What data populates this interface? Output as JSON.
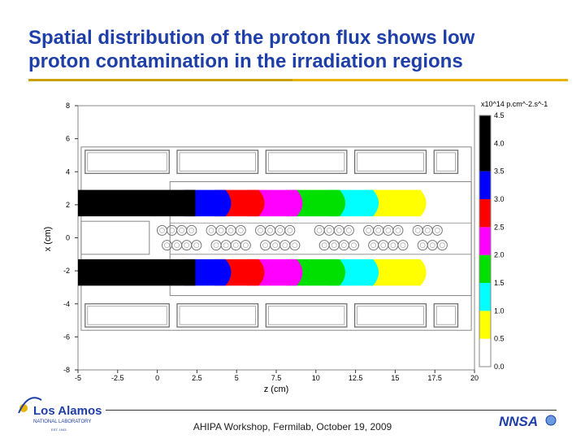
{
  "title": {
    "line1": "Spatial distribution of the proton flux shows low",
    "line2": "proton contamination in the irradiation regions"
  },
  "footer": {
    "text": "AHIPA Workshop, Fermilab, October 19, 2009",
    "logo_left_line1": "Los Alamos",
    "logo_left_line2": "NATIONAL LABORATORY",
    "logo_left_line3": "EST. 1943",
    "logo_right": "NNSA"
  },
  "colors": {
    "title": "#1f3fa8",
    "accent_rule": "#e8b400",
    "bin_0_0.5": "#ffffff",
    "bin_0.5_1.0": "#ffff00",
    "bin_1.0_1.5": "#00ffff",
    "bin_1.5_2.0": "#00e000",
    "bin_2.0_2.5": "#ff00ff",
    "bin_2.5_3.0": "#ff0000",
    "bin_3.0_3.5": "#0000ff",
    "bin_3.5_4.0": "#000000"
  },
  "chart_data": {
    "type": "heatmap",
    "xlabel": "z (cm)",
    "ylabel": "x (cm)",
    "xlim": [
      -5,
      20
    ],
    "ylim": [
      -8,
      8
    ],
    "xticks": [
      "-5",
      "-2.5",
      "0",
      "2.5",
      "5",
      "7.5",
      "10",
      "12.5",
      "15",
      "17.5",
      "20"
    ],
    "yticks": [
      "8",
      "6",
      "4",
      "2",
      "0",
      "-2",
      "-4",
      "-6",
      "-8"
    ],
    "colorbar": {
      "unit": "x10^14 p.cm^-2.s^-1",
      "ticks": [
        "4.5",
        "4.0",
        "3.5",
        "3.0",
        "2.5",
        "2.0",
        "1.5",
        "1.0",
        "0.5",
        "0.0"
      ],
      "range": [
        0,
        4.5
      ]
    },
    "beams": [
      {
        "x_center": 2.1,
        "x_half_width": 0.8,
        "bands": [
          {
            "z_end": 2.4,
            "level": "3.5-4.0"
          },
          {
            "z_end": 4.3,
            "level": "3.0-3.5"
          },
          {
            "z_end": 6.4,
            "level": "2.5-3.0"
          },
          {
            "z_end": 8.8,
            "level": "2.0-2.5"
          },
          {
            "z_end": 11.5,
            "level": "1.5-2.0"
          },
          {
            "z_end": 13.6,
            "level": "1.0-1.5"
          },
          {
            "z_end": 16.6,
            "level": "0.5-1.0"
          }
        ]
      },
      {
        "x_center": -2.1,
        "x_half_width": 0.8,
        "bands": [
          {
            "z_end": 2.4,
            "level": "3.5-4.0"
          },
          {
            "z_end": 4.3,
            "level": "3.0-3.5"
          },
          {
            "z_end": 6.4,
            "level": "2.5-3.0"
          },
          {
            "z_end": 8.8,
            "level": "2.0-2.5"
          },
          {
            "z_end": 11.5,
            "level": "1.5-2.0"
          },
          {
            "z_end": 13.6,
            "level": "1.0-1.5"
          },
          {
            "z_end": 16.6,
            "level": "0.5-1.0"
          }
        ]
      }
    ]
  }
}
